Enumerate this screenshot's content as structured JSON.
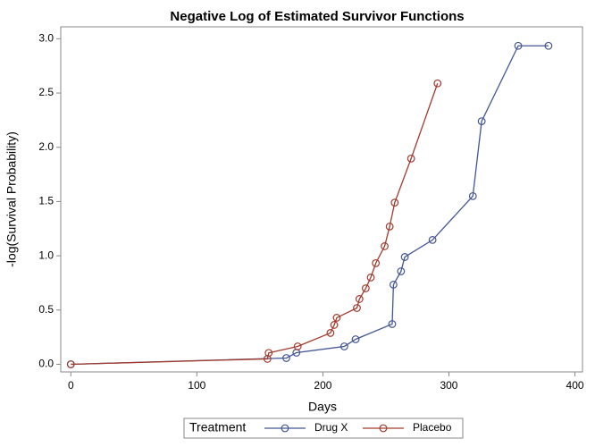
{
  "chart_data": {
    "type": "line",
    "title": "Negative Log of Estimated Survivor Functions",
    "x_label": "Days",
    "y_label": "-log(Survival Probability)",
    "legend_title": "Treatment",
    "legend_position": "bottom",
    "xlim": [
      -8,
      406
    ],
    "ylim": [
      -0.07,
      3.11
    ],
    "xticks": [
      0,
      100,
      200,
      300,
      400
    ],
    "yticks": [
      {
        "value": 0,
        "label": "0.0"
      },
      0.5,
      {
        "value": 1,
        "label": "1.0"
      },
      1.5,
      {
        "value": 2,
        "label": "2.0"
      },
      2.5,
      {
        "value": 3,
        "label": "3.0"
      }
    ],
    "series": [
      {
        "name": "Drug X",
        "color": "#445694",
        "x": [
          0,
          171,
          179,
          217,
          226,
          255,
          256,
          262,
          265,
          287,
          319,
          326,
          355,
          379
        ],
        "values": [
          0,
          0.058,
          0.107,
          0.165,
          0.231,
          0.371,
          0.734,
          0.857,
          0.989,
          1.146,
          1.55,
          2.24,
          2.935,
          2.935
        ]
      },
      {
        "name": "Placebo",
        "color": "#a23a2e",
        "x": [
          0,
          156,
          157,
          180,
          206,
          209,
          211,
          227,
          229,
          234,
          238,
          242,
          249,
          253,
          257,
          270,
          291
        ],
        "values": [
          0,
          0.05,
          0.105,
          0.165,
          0.289,
          0.363,
          0.429,
          0.519,
          0.602,
          0.7,
          0.8,
          0.932,
          1.088,
          1.27,
          1.49,
          1.896,
          2.589
        ]
      }
    ]
  }
}
